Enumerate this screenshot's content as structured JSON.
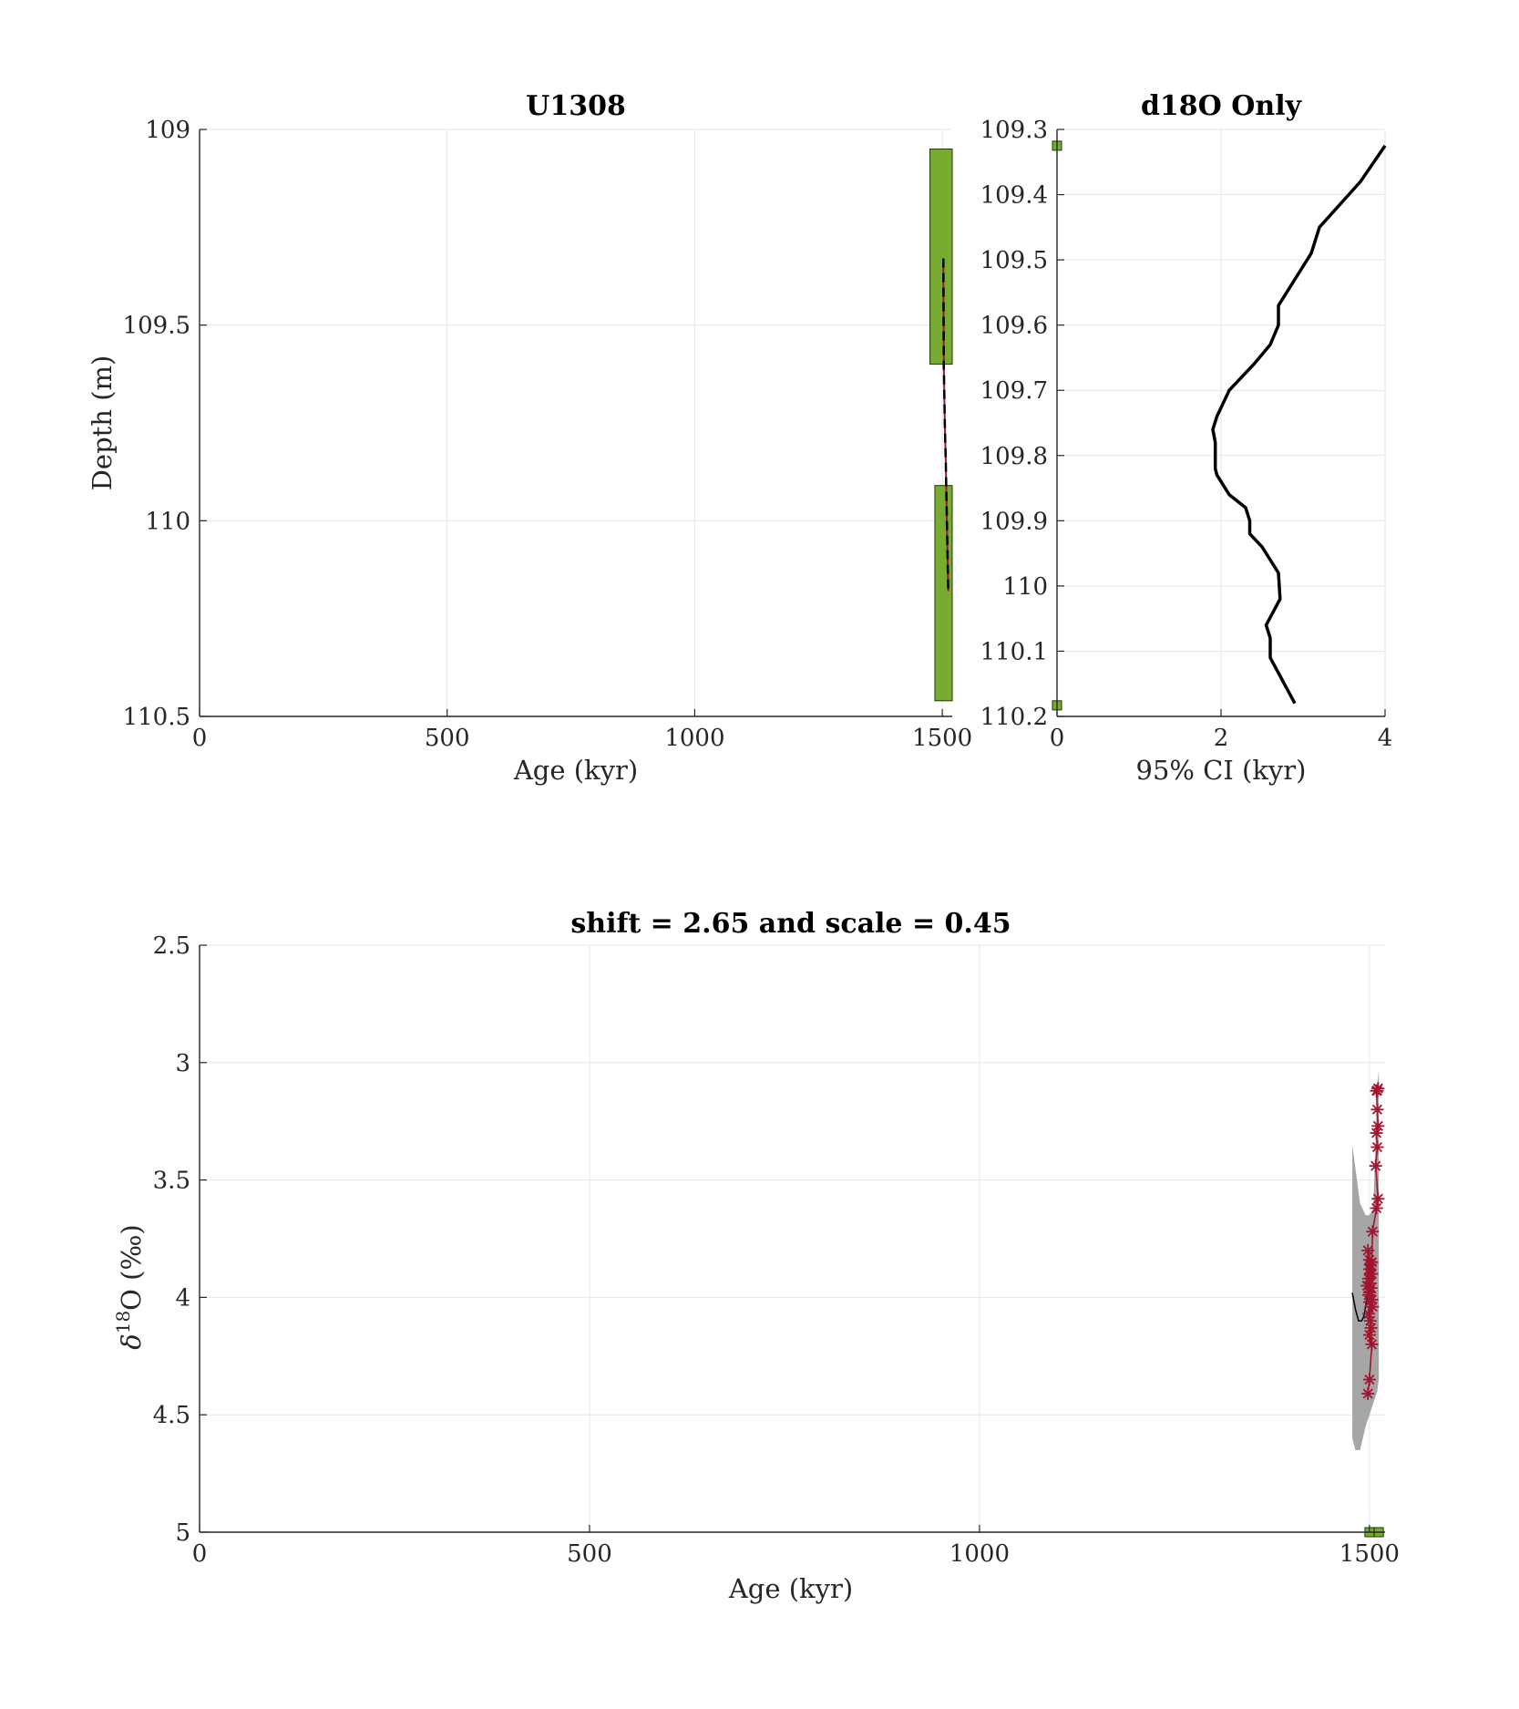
{
  "colors": {
    "grid": "#e6e6e6",
    "axis": "#262626",
    "tiepoint_fill": "#77ac30",
    "tiepoint_edge": "#1a3a00",
    "curve": "#000000",
    "data_marker": "#a2142f",
    "ci_band": "#a6a6a6"
  },
  "chart_data": [
    {
      "id": "depth_age",
      "type": "line",
      "title": "U1308",
      "xlabel": "Age (kyr)",
      "ylabel": "Depth (m)",
      "xlim": [
        0,
        1520
      ],
      "ylim": [
        109,
        110.5
      ],
      "y_reversed": true,
      "grid": true,
      "x_ticks": [
        0,
        500,
        1000,
        1500
      ],
      "y_ticks": [
        109,
        109.5,
        110,
        110.5
      ],
      "x_tick_labels": [
        "0",
        "500",
        "1000",
        "1500"
      ],
      "y_tick_labels": [
        "109",
        "109.5",
        "110",
        "110.5"
      ],
      "tiepoint_boxes": [
        {
          "x0": 1475,
          "x1": 1520,
          "y0": 109.05,
          "y1": 109.6
        },
        {
          "x0": 1485,
          "x1": 1520,
          "y0": 109.91,
          "y1": 110.46
        }
      ],
      "series": [
        {
          "style": "solid",
          "x": [
            1502,
            1503,
            1505,
            1507,
            1508,
            1510,
            1512
          ],
          "y": [
            109.33,
            109.6,
            109.75,
            109.85,
            109.92,
            110.05,
            110.18
          ]
        },
        {
          "style": "dashed",
          "x": [
            1502,
            1503,
            1505,
            1507,
            1508,
            1510,
            1512
          ],
          "y": [
            109.33,
            109.6,
            109.75,
            109.85,
            109.92,
            110.05,
            110.18
          ]
        }
      ]
    },
    {
      "id": "ci",
      "type": "line",
      "title": "d18O Only",
      "xlabel": "95% CI (kyr)",
      "ylabel": "",
      "xlim": [
        0,
        4
      ],
      "ylim": [
        109.3,
        110.2
      ],
      "y_reversed": true,
      "grid": true,
      "x_ticks": [
        0,
        2,
        4
      ],
      "y_ticks": [
        109.3,
        109.4,
        109.5,
        109.6,
        109.7,
        109.8,
        109.9,
        110,
        110.1,
        110.2
      ],
      "x_tick_labels": [
        "0",
        "2",
        "4"
      ],
      "y_tick_labels": [
        "109.3",
        "109.4",
        "109.5",
        "109.6",
        "109.7",
        "109.8",
        "109.9",
        "110",
        "110.1",
        "110.2"
      ],
      "tiepoint_markers": [
        {
          "x": 0,
          "y": 109.325
        },
        {
          "x": 0,
          "y": 110.183
        }
      ],
      "series": [
        {
          "x": [
            4.0,
            3.7,
            3.2,
            3.1,
            2.7,
            2.7,
            2.6,
            2.4,
            2.1,
            1.95,
            1.9,
            1.93,
            1.93,
            1.95,
            2.1,
            2.3,
            2.35,
            2.35,
            2.5,
            2.7,
            2.72,
            2.55,
            2.6,
            2.6,
            2.9
          ],
          "y": [
            109.325,
            109.38,
            109.45,
            109.49,
            109.57,
            109.6,
            109.63,
            109.66,
            109.7,
            109.74,
            109.76,
            109.78,
            109.82,
            109.83,
            109.86,
            109.88,
            109.9,
            109.92,
            109.94,
            109.98,
            110.02,
            110.06,
            110.08,
            110.11,
            110.18
          ]
        }
      ]
    },
    {
      "id": "d18o",
      "type": "scatter",
      "title": "shift = 2.65 and scale = 0.45",
      "xlabel": "Age (kyr)",
      "ylabel": "δ18O (‰)",
      "ylabel_parts": {
        "symbol": "δ",
        "superscript": "18",
        "rest": "O (‰)"
      },
      "xlim": [
        0,
        1520
      ],
      "ylim": [
        2.5,
        5
      ],
      "y_reversed": true,
      "grid": true,
      "x_ticks": [
        0,
        500,
        1000,
        1500
      ],
      "y_ticks": [
        2.5,
        3,
        3.5,
        4,
        4.5,
        5
      ],
      "x_tick_labels": [
        "0",
        "500",
        "1000",
        "1500"
      ],
      "y_tick_labels": [
        "2.5",
        "3",
        "3.5",
        "4",
        "4.5",
        "5"
      ],
      "ci_band_upper": {
        "x": [
          1478,
          1482,
          1488,
          1495,
          1500,
          1505,
          1510,
          1512
        ],
        "y": [
          3.35,
          3.45,
          3.6,
          3.65,
          3.65,
          3.62,
          3.1,
          3.03
        ]
      },
      "ci_band_lower": {
        "x": [
          1478,
          1482,
          1488,
          1495,
          1500,
          1505,
          1510,
          1512
        ],
        "y": [
          4.6,
          4.65,
          4.65,
          4.55,
          4.5,
          4.45,
          4.4,
          4.35
        ]
      },
      "mean_curve": {
        "x": [
          1478,
          1482,
          1486,
          1490,
          1493,
          1496,
          1498
        ],
        "y": [
          3.98,
          4.05,
          4.1,
          4.1,
          4.08,
          4.02,
          3.98
        ]
      },
      "series": [
        {
          "x": [
            1498,
            1500,
            1503,
            1500,
            1502,
            1501,
            1499,
            1504,
            1503,
            1500,
            1502,
            1501,
            1499,
            1503,
            1500,
            1501,
            1500,
            1498,
            1497,
            1499,
            1500,
            1501,
            1503,
            1504,
            1509,
            1511,
            1508,
            1510,
            1509,
            1511,
            1510,
            1509,
            1511,
            1510
          ],
          "y": [
            4.41,
            4.35,
            4.2,
            4.16,
            4.13,
            4.1,
            4.07,
            4.04,
            4.01,
            3.98,
            3.96,
            3.94,
            3.92,
            3.9,
            3.88,
            3.86,
            3.84,
            3.8,
            3.95,
            3.99,
            4.02,
            3.9,
            3.85,
            3.72,
            3.62,
            3.58,
            3.44,
            3.36,
            3.3,
            3.27,
            3.2,
            3.12,
            3.11,
            3.12
          ]
        }
      ],
      "tiepoint_markers": [
        {
          "x": 1500,
          "y": 5
        },
        {
          "x": 1512,
          "y": 5
        }
      ]
    }
  ]
}
